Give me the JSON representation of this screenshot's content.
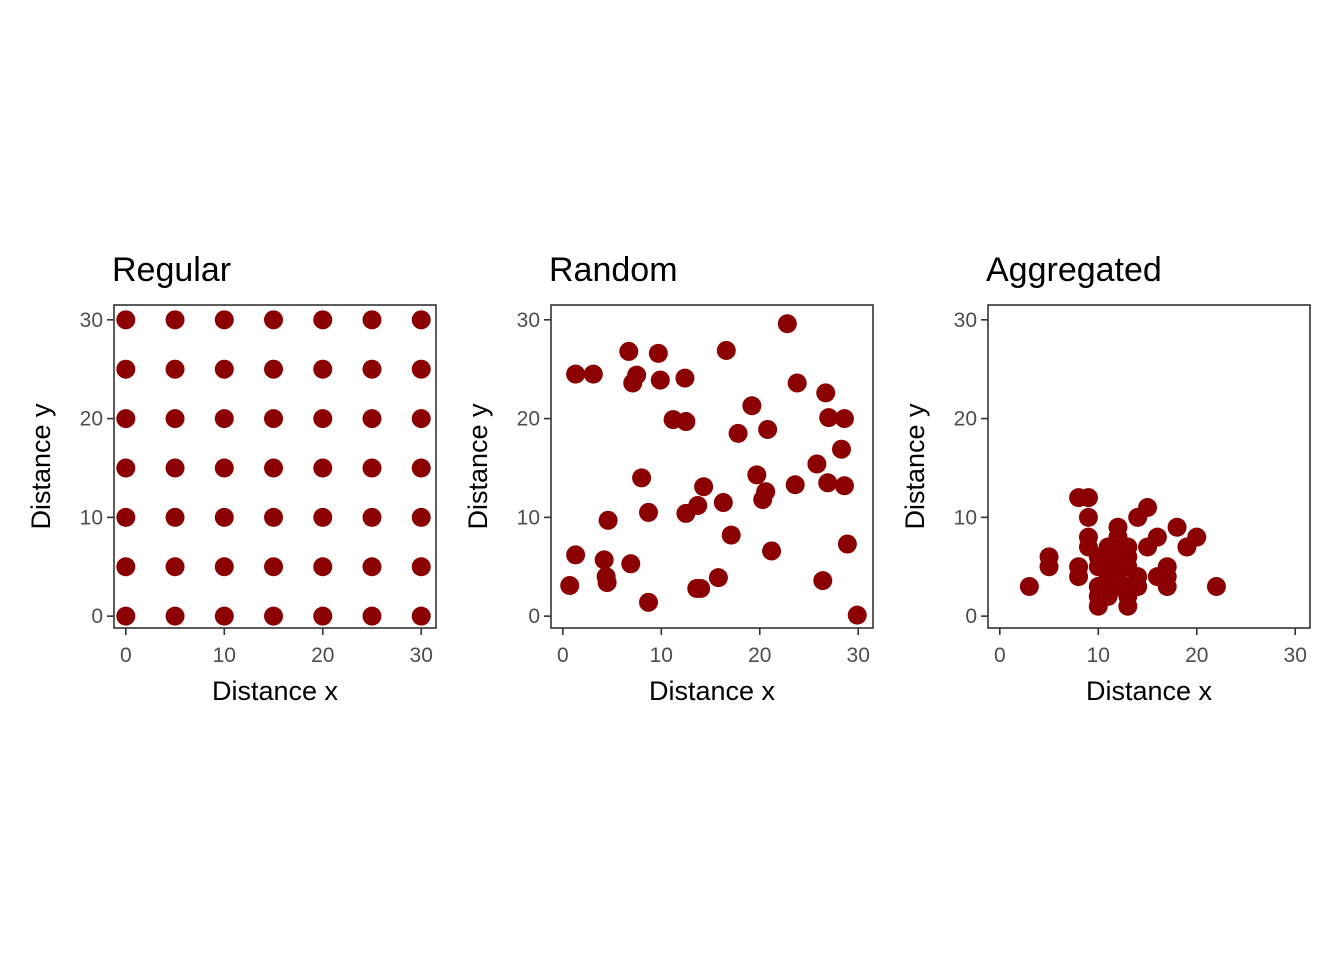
{
  "chart_data": [
    {
      "type": "scatter",
      "title": "Regular",
      "xlabel": "Distance x",
      "ylabel": "Distance y",
      "xlim": [
        -1.2,
        31.5
      ],
      "ylim": [
        -1.2,
        31.5
      ],
      "xticks": [
        0,
        10,
        20,
        30
      ],
      "yticks": [
        0,
        10,
        20,
        30
      ],
      "grid": false,
      "point_color": "#8B0000",
      "points": [
        [
          0,
          0
        ],
        [
          5,
          0
        ],
        [
          10,
          0
        ],
        [
          15,
          0
        ],
        [
          20,
          0
        ],
        [
          25,
          0
        ],
        [
          30,
          0
        ],
        [
          0,
          5
        ],
        [
          5,
          5
        ],
        [
          10,
          5
        ],
        [
          15,
          5
        ],
        [
          20,
          5
        ],
        [
          25,
          5
        ],
        [
          30,
          5
        ],
        [
          0,
          10
        ],
        [
          5,
          10
        ],
        [
          10,
          10
        ],
        [
          15,
          10
        ],
        [
          20,
          10
        ],
        [
          25,
          10
        ],
        [
          30,
          10
        ],
        [
          0,
          15
        ],
        [
          5,
          15
        ],
        [
          10,
          15
        ],
        [
          15,
          15
        ],
        [
          20,
          15
        ],
        [
          25,
          15
        ],
        [
          30,
          15
        ],
        [
          0,
          20
        ],
        [
          5,
          20
        ],
        [
          10,
          20
        ],
        [
          15,
          20
        ],
        [
          20,
          20
        ],
        [
          25,
          20
        ],
        [
          30,
          20
        ],
        [
          0,
          25
        ],
        [
          5,
          25
        ],
        [
          10,
          25
        ],
        [
          15,
          25
        ],
        [
          20,
          25
        ],
        [
          25,
          25
        ],
        [
          30,
          25
        ],
        [
          0,
          30
        ],
        [
          5,
          30
        ],
        [
          10,
          30
        ],
        [
          15,
          30
        ],
        [
          20,
          30
        ],
        [
          25,
          30
        ],
        [
          30,
          30
        ]
      ]
    },
    {
      "type": "scatter",
      "title": "Random",
      "xlabel": "Distance x",
      "ylabel": "Distance y",
      "xlim": [
        -1.2,
        31.5
      ],
      "ylim": [
        -1.2,
        31.5
      ],
      "xticks": [
        0,
        10,
        20,
        30
      ],
      "yticks": [
        0,
        10,
        20,
        30
      ],
      "grid": false,
      "point_color": "#8B0000",
      "points": [
        [
          1.3,
          24.5
        ],
        [
          3.1,
          24.5
        ],
        [
          6.7,
          26.8
        ],
        [
          7.5,
          24.4
        ],
        [
          7.1,
          23.6
        ],
        [
          9.7,
          26.6
        ],
        [
          9.9,
          23.9
        ],
        [
          11.2,
          19.9
        ],
        [
          12.5,
          19.7
        ],
        [
          12.4,
          24.1
        ],
        [
          16.6,
          26.9
        ],
        [
          22.8,
          29.6
        ],
        [
          23.8,
          23.6
        ],
        [
          26.7,
          22.6
        ],
        [
          27.0,
          20.1
        ],
        [
          28.6,
          20.0
        ],
        [
          19.2,
          21.3
        ],
        [
          17.8,
          18.5
        ],
        [
          20.8,
          18.9
        ],
        [
          28.3,
          16.9
        ],
        [
          25.8,
          15.4
        ],
        [
          19.7,
          14.3
        ],
        [
          26.9,
          13.5
        ],
        [
          28.6,
          13.2
        ],
        [
          23.6,
          13.3
        ],
        [
          20.6,
          12.6
        ],
        [
          20.3,
          11.8
        ],
        [
          14.3,
          13.1
        ],
        [
          8.0,
          14.0
        ],
        [
          16.3,
          11.5
        ],
        [
          13.7,
          11.2
        ],
        [
          12.5,
          10.4
        ],
        [
          8.7,
          10.5
        ],
        [
          4.6,
          9.7
        ],
        [
          17.1,
          8.2
        ],
        [
          28.9,
          7.3
        ],
        [
          21.2,
          6.6
        ],
        [
          1.3,
          6.2
        ],
        [
          4.2,
          5.7
        ],
        [
          6.9,
          5.3
        ],
        [
          4.4,
          4.0
        ],
        [
          4.5,
          3.4
        ],
        [
          0.7,
          3.1
        ],
        [
          15.8,
          3.9
        ],
        [
          13.6,
          2.8
        ],
        [
          14.0,
          2.8
        ],
        [
          26.4,
          3.6
        ],
        [
          8.7,
          1.4
        ],
        [
          29.9,
          0.1
        ]
      ]
    },
    {
      "type": "scatter",
      "title": "Aggregated",
      "xlabel": "Distance x",
      "ylabel": "Distance y",
      "xlim": [
        -1.2,
        31.5
      ],
      "ylim": [
        -1.2,
        31.5
      ],
      "xticks": [
        0,
        10,
        20,
        30
      ],
      "yticks": [
        0,
        10,
        20,
        30
      ],
      "grid": false,
      "point_color": "#8B0000",
      "points": [
        [
          3,
          3
        ],
        [
          5,
          6
        ],
        [
          5,
          5
        ],
        [
          8,
          12
        ],
        [
          9,
          12
        ],
        [
          9,
          10
        ],
        [
          8,
          5
        ],
        [
          8,
          4
        ],
        [
          9,
          8
        ],
        [
          9,
          7
        ],
        [
          10,
          6
        ],
        [
          10,
          5
        ],
        [
          10,
          3
        ],
        [
          10,
          2
        ],
        [
          10,
          1
        ],
        [
          11,
          7
        ],
        [
          11,
          6
        ],
        [
          11,
          5
        ],
        [
          11,
          4
        ],
        [
          11,
          3
        ],
        [
          11,
          2
        ],
        [
          12,
          9
        ],
        [
          12,
          8
        ],
        [
          12,
          7
        ],
        [
          12,
          6
        ],
        [
          12,
          5
        ],
        [
          12,
          4
        ],
        [
          12,
          3
        ],
        [
          13,
          7
        ],
        [
          13,
          6
        ],
        [
          13,
          5
        ],
        [
          13,
          3
        ],
        [
          13,
          2
        ],
        [
          13,
          1
        ],
        [
          14,
          10
        ],
        [
          14,
          4
        ],
        [
          14,
          3
        ],
        [
          15,
          11
        ],
        [
          15,
          7
        ],
        [
          16,
          8
        ],
        [
          16,
          4
        ],
        [
          17,
          5
        ],
        [
          17,
          4
        ],
        [
          17,
          3
        ],
        [
          18,
          9
        ],
        [
          19,
          7
        ],
        [
          20,
          8
        ],
        [
          22,
          3
        ],
        [
          11.5,
          6.5
        ]
      ]
    }
  ]
}
